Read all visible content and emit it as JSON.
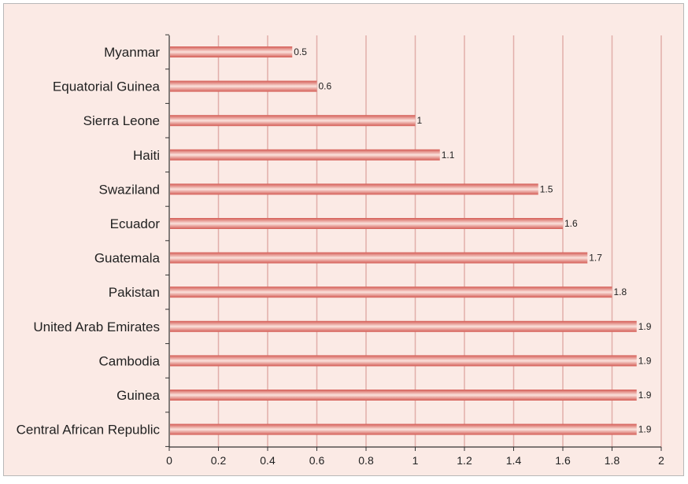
{
  "colors": {
    "background": "#fbeae5",
    "outer_border": "#b8b8b8",
    "gridline": "#e2aeaa",
    "axis": "#333333",
    "bar_edge": "#d45c55",
    "bar_highlight": "#fbe2dc"
  },
  "chart_data": {
    "type": "bar",
    "orientation": "horizontal",
    "title": "",
    "xlabel": "",
    "ylabel": "",
    "categories": [
      "Myanmar",
      "Equatorial Guinea",
      "Sierra Leone",
      "Haiti",
      "Swaziland",
      "Ecuador",
      "Guatemala",
      "Pakistan",
      "United Arab Emirates",
      "Cambodia",
      "Guinea",
      "Central African Republic"
    ],
    "values": [
      0.5,
      0.6,
      1,
      1.1,
      1.5,
      1.6,
      1.7,
      1.8,
      1.9,
      1.9,
      1.9,
      1.9
    ],
    "data_labels": [
      "0.5",
      "0.6",
      "1",
      "1.1",
      "1.5",
      "1.6",
      "1.7",
      "1.8",
      "1.9",
      "1.9",
      "1.9",
      "1.9"
    ],
    "xlim": [
      0,
      2
    ],
    "x_ticks": [
      0,
      0.2,
      0.4,
      0.6,
      0.8,
      1,
      1.2,
      1.4,
      1.6,
      1.8,
      2
    ],
    "x_tick_labels": [
      "0",
      "0.2",
      "0.4",
      "0.6",
      "0.8",
      "1",
      "1.2",
      "1.4",
      "1.6",
      "1.8",
      "2"
    ],
    "grid": true,
    "legend": "none"
  }
}
